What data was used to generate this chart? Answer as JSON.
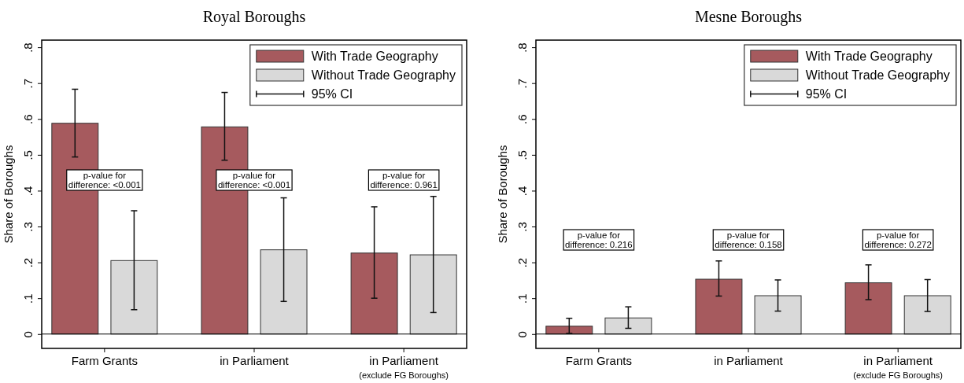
{
  "chart_data": [
    {
      "type": "bar",
      "title": "Royal Boroughs",
      "ylabel": "Share of Boroughs",
      "categories": [
        "Farm Grants",
        "in Parliament",
        "in Parliament\n$_{(exclude FG Boroughs)}$"
      ],
      "series": [
        {
          "name": "With Trade Geography",
          "color": "#a65a5e",
          "values": [
            0.588,
            0.578,
            0.226
          ],
          "errors": [
            [
              0.494,
              0.683
            ],
            [
              0.485,
              0.674
            ],
            [
              0.1,
              0.355
            ]
          ]
        },
        {
          "name": "Without Trade Geography",
          "color": "#d9d9d9",
          "values": [
            0.205,
            0.235,
            0.221
          ],
          "errors": [
            [
              0.068,
              0.344
            ],
            [
              0.091,
              0.38
            ],
            [
              0.06,
              0.384
            ]
          ]
        }
      ],
      "ylim": [
        -0.04,
        0.82
      ],
      "yticks": [
        {
          "value": 0,
          "label": "0"
        },
        {
          "value": 0.1,
          "label": ".1"
        },
        {
          "value": 0.2,
          "label": ".2"
        },
        {
          "value": 0.3,
          "label": ".3"
        },
        {
          "value": 0.4,
          "label": ".4"
        },
        {
          "value": 0.5,
          "label": ".5"
        },
        {
          "value": 0.6,
          "label": ".6"
        },
        {
          "value": 0.7,
          "label": ".7"
        },
        {
          "value": 0.8,
          "label": ".8"
        }
      ],
      "ref_lines": [
        {
          "axis": "y",
          "value": 0,
          "color": "#000000"
        }
      ],
      "legend": "top right",
      "annotations": [
        "95% CI",
        "p-value for\ndifference: <0.001",
        "p-value for\ndifference: <0.001",
        "p-value for\ndifference: 0.961"
      ]
    },
    {
      "type": "bar",
      "title": "Mesne Boroughs",
      "ylabel": "Share of Boroughs",
      "categories": [
        "Farm Grants",
        "in Parliament",
        "in Parliament\n$_{(exclude FG Boroughs)}$"
      ],
      "series": [
        {
          "name": "With Trade Geography",
          "color": "#a65a5e",
          "values": [
            0.022,
            0.153,
            0.143
          ],
          "errors": [
            [
              0.002,
              0.044
            ],
            [
              0.106,
              0.204
            ],
            [
              0.096,
              0.193
            ]
          ]
        },
        {
          "name": "Without Trade Geography",
          "color": "#d9d9d9",
          "values": [
            0.045,
            0.107,
            0.107
          ],
          "errors": [
            [
              0.016,
              0.076
            ],
            [
              0.064,
              0.151
            ],
            [
              0.063,
              0.152
            ]
          ]
        }
      ],
      "ylim": [
        -0.04,
        0.82
      ],
      "yticks": [
        {
          "value": 0,
          "label": "0"
        },
        {
          "value": 0.1,
          "label": ".1"
        },
        {
          "value": 0.2,
          "label": ".2"
        },
        {
          "value": 0.3,
          "label": ".3"
        },
        {
          "value": 0.4,
          "label": ".4"
        },
        {
          "value": 0.5,
          "label": ".5"
        },
        {
          "value": 0.6,
          "label": ".6"
        },
        {
          "value": 0.7,
          "label": ".7"
        },
        {
          "value": 0.8,
          "label": ".8"
        }
      ],
      "ref_lines": [
        {
          "axis": "y",
          "value": 0,
          "color": "#000000"
        }
      ],
      "legend": "top right",
      "annotations": [
        "95% CI",
        "p-value for\ndifference: 0.216",
        "p-value for\ndifference: 0.158",
        "p-value for\ndifference: 0.272"
      ]
    }
  ]
}
